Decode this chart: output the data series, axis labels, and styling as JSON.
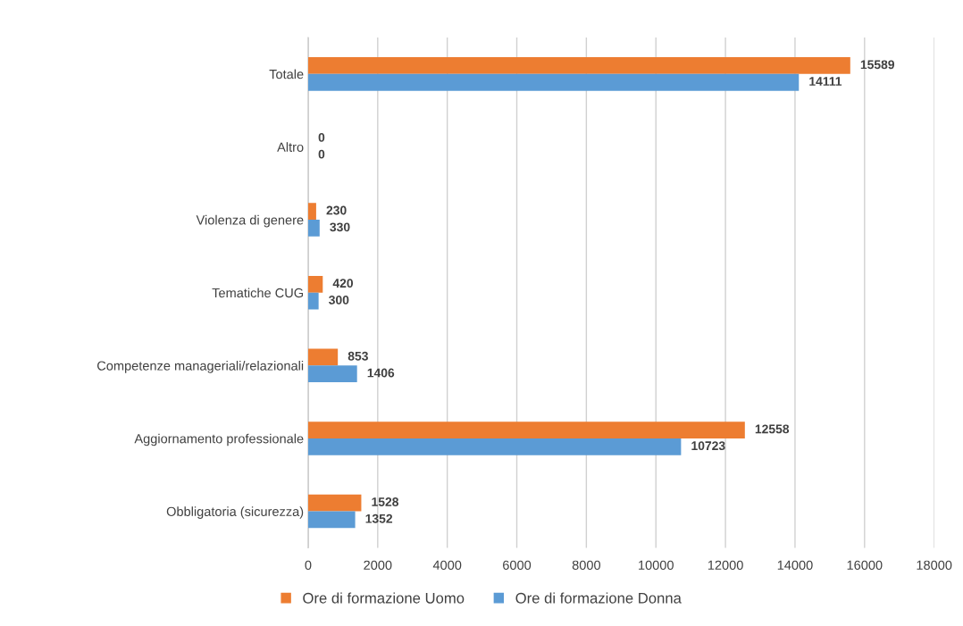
{
  "chart_data": {
    "type": "bar",
    "orientation": "horizontal",
    "categories": [
      "Totale",
      "Altro",
      "Violenza di genere",
      "Tematiche CUG",
      "Competenze manageriali/relazionali",
      "Aggiornamento professionale",
      "Obbligatoria (sicurezza)"
    ],
    "series": [
      {
        "name": "Ore di formazione Uomo",
        "color": "#ed7d31",
        "values": [
          15589,
          0,
          230,
          420,
          853,
          12558,
          1528
        ]
      },
      {
        "name": "Ore di formazione Donna",
        "color": "#5b9bd5",
        "values": [
          14111,
          0,
          330,
          300,
          1406,
          10723,
          1352
        ]
      }
    ],
    "xlim": [
      0,
      18000
    ],
    "xticks": [
      0,
      2000,
      4000,
      6000,
      8000,
      10000,
      12000,
      14000,
      16000,
      18000
    ],
    "grid": "x",
    "legend": "bottom",
    "data_labels": true
  }
}
